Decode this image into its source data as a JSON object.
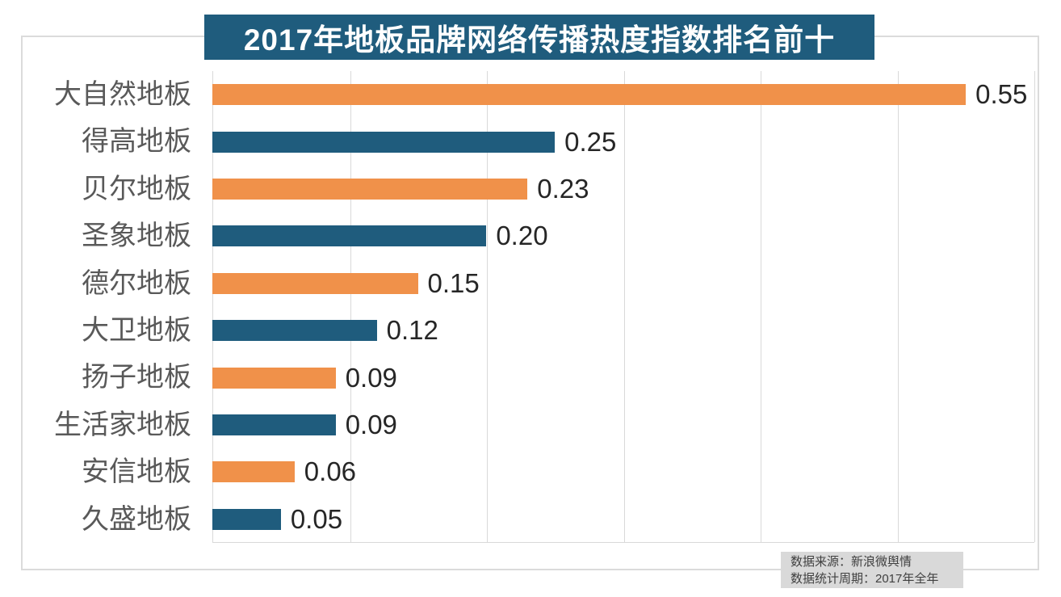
{
  "title": "2017年地板品牌网络传播热度指数排名前十",
  "source": {
    "line1": "数据来源：新浪微舆情",
    "line2": "数据统计周期：2017年全年"
  },
  "colors": {
    "banner_bg": "#1f5c7d",
    "banner_text": "#ffffff",
    "bar_orange": "#f0914a",
    "bar_teal": "#1f5c7d",
    "gridline": "#d9d9d9",
    "frame_border": "#dbdbdb",
    "category_text": "#595959",
    "value_text": "#262626",
    "source_bg": "#d9d9d9",
    "source_text": "#404040"
  },
  "chart_data": {
    "type": "bar",
    "orientation": "horizontal",
    "title": "2017年地板品牌网络传播热度指数排名前十",
    "categories": [
      "大自然地板",
      "得高地板",
      "贝尔地板",
      "圣象地板",
      "德尔地板",
      "大卫地板",
      "扬子地板",
      "生活家地板",
      "安信地板",
      "久盛地板"
    ],
    "values": [
      0.55,
      0.25,
      0.23,
      0.2,
      0.15,
      0.12,
      0.09,
      0.09,
      0.06,
      0.05
    ],
    "value_labels": [
      "0.55",
      "0.25",
      "0.23",
      "0.20",
      "0.15",
      "0.12",
      "0.09",
      "0.09",
      "0.06",
      "0.05"
    ],
    "xlim": [
      0,
      0.6
    ],
    "gridline_step": 0.1,
    "gridline_values": [
      0.1,
      0.2,
      0.3,
      0.4,
      0.5,
      0.6
    ],
    "bar_colors_alternate": [
      "#f0914a",
      "#1f5c7d"
    ],
    "grid": "vertical-only",
    "legend": "none",
    "axis_tick_labels": "none"
  }
}
